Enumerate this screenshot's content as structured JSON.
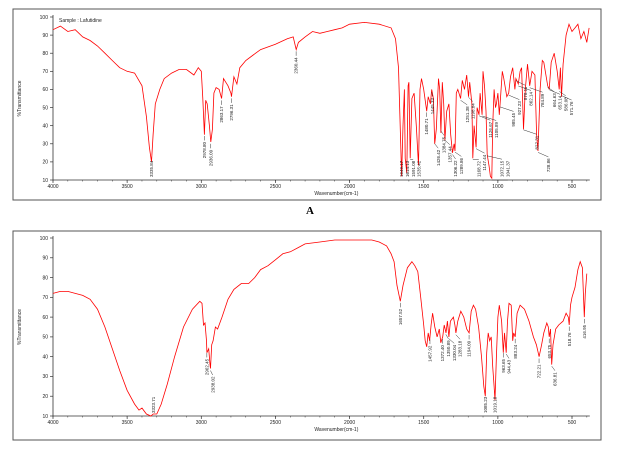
{
  "chart_data": [
    {
      "type": "line",
      "title": "",
      "annotation": "Sample : Lafutidine",
      "xlabel": "Wavenumber(cm-1)",
      "ylabel": "%Transmittance",
      "xlim": [
        4000,
        380
      ],
      "ylim": [
        10,
        100
      ],
      "x_ticks": [
        4000,
        3500,
        3000,
        2500,
        2000,
        1500,
        1000,
        500
      ],
      "y_ticks": [
        10,
        20,
        30,
        40,
        50,
        60,
        70,
        80,
        90,
        100
      ],
      "line_color": "#ff0000",
      "grid": false,
      "points": [
        [
          4000,
          93
        ],
        [
          3950,
          95
        ],
        [
          3900,
          92
        ],
        [
          3850,
          93
        ],
        [
          3800,
          89
        ],
        [
          3750,
          87
        ],
        [
          3700,
          84
        ],
        [
          3650,
          80
        ],
        [
          3600,
          76
        ],
        [
          3550,
          72
        ],
        [
          3500,
          70
        ],
        [
          3450,
          69
        ],
        [
          3400,
          62
        ],
        [
          3370,
          45
        ],
        [
          3350,
          28
        ],
        [
          3336,
          20
        ],
        [
          3325,
          35
        ],
        [
          3310,
          52
        ],
        [
          3280,
          60
        ],
        [
          3250,
          66
        ],
        [
          3200,
          69
        ],
        [
          3150,
          71
        ],
        [
          3100,
          71
        ],
        [
          3050,
          68
        ],
        [
          3020,
          72
        ],
        [
          3000,
          70
        ],
        [
          2990,
          55
        ],
        [
          2979,
          35
        ],
        [
          2970,
          54
        ],
        [
          2960,
          52
        ],
        [
          2945,
          40
        ],
        [
          2936,
          31
        ],
        [
          2925,
          38
        ],
        [
          2915,
          58
        ],
        [
          2900,
          61
        ],
        [
          2880,
          60
        ],
        [
          2863,
          55
        ],
        [
          2850,
          66
        ],
        [
          2820,
          62
        ],
        [
          2800,
          58
        ],
        [
          2796,
          56
        ],
        [
          2780,
          67
        ],
        [
          2760,
          63
        ],
        [
          2740,
          72
        ],
        [
          2700,
          76
        ],
        [
          2650,
          79
        ],
        [
          2600,
          82
        ],
        [
          2500,
          85
        ],
        [
          2420,
          88
        ],
        [
          2380,
          89
        ],
        [
          2360,
          82
        ],
        [
          2345,
          86
        ],
        [
          2300,
          89
        ],
        [
          2250,
          92
        ],
        [
          2200,
          91
        ],
        [
          2150,
          92
        ],
        [
          2100,
          93
        ],
        [
          2050,
          94
        ],
        [
          2000,
          96
        ],
        [
          1900,
          97
        ],
        [
          1800,
          96
        ],
        [
          1720,
          94
        ],
        [
          1690,
          88
        ],
        [
          1670,
          72
        ],
        [
          1655,
          30
        ],
        [
          1649,
          12
        ],
        [
          1640,
          40
        ],
        [
          1630,
          60
        ],
        [
          1625,
          22
        ],
        [
          1614,
          14
        ],
        [
          1605,
          62
        ],
        [
          1600,
          64
        ],
        [
          1591,
          22
        ],
        [
          1580,
          55
        ],
        [
          1565,
          58
        ],
        [
          1550,
          40
        ],
        [
          1535,
          18
        ],
        [
          1525,
          60
        ],
        [
          1515,
          66
        ],
        [
          1500,
          60
        ],
        [
          1480,
          48
        ],
        [
          1470,
          56
        ],
        [
          1455,
          52
        ],
        [
          1446,
          60
        ],
        [
          1435,
          55
        ],
        [
          1426,
          30
        ],
        [
          1415,
          38
        ],
        [
          1400,
          66
        ],
        [
          1392,
          60
        ],
        [
          1384,
          36
        ],
        [
          1375,
          64
        ],
        [
          1365,
          52
        ],
        [
          1357,
          32
        ],
        [
          1345,
          48
        ],
        [
          1330,
          52
        ],
        [
          1318,
          35
        ],
        [
          1306,
          25
        ],
        [
          1295,
          30
        ],
        [
          1289,
          26
        ],
        [
          1280,
          58
        ],
        [
          1270,
          60
        ],
        [
          1251,
          55
        ],
        [
          1240,
          65
        ],
        [
          1225,
          60
        ],
        [
          1210,
          68
        ],
        [
          1198,
          56
        ],
        [
          1190,
          64
        ],
        [
          1175,
          52
        ],
        [
          1169,
          22
        ],
        [
          1160,
          40
        ],
        [
          1147,
          28
        ],
        [
          1140,
          50
        ],
        [
          1127,
          46
        ],
        [
          1120,
          58
        ],
        [
          1106,
          46
        ],
        [
          1100,
          70
        ],
        [
          1090,
          62
        ],
        [
          1080,
          48
        ],
        [
          1072,
          24
        ],
        [
          1060,
          18
        ],
        [
          1050,
          12
        ],
        [
          1041,
          11
        ],
        [
          1035,
          40
        ],
        [
          1025,
          60
        ],
        [
          1016,
          50
        ],
        [
          1010,
          52
        ],
        [
          1000,
          58
        ],
        [
          990,
          46
        ],
        [
          985,
          52
        ],
        [
          970,
          70
        ],
        [
          960,
          66
        ],
        [
          940,
          56
        ],
        [
          927,
          58
        ],
        [
          915,
          67
        ],
        [
          900,
          72
        ],
        [
          885,
          60
        ],
        [
          878,
          66
        ],
        [
          862,
          63
        ],
        [
          850,
          70
        ],
        [
          840,
          72
        ],
        [
          827,
          38
        ],
        [
          815,
          60
        ],
        [
          800,
          74
        ],
        [
          785,
          62
        ],
        [
          770,
          70
        ],
        [
          750,
          68
        ],
        [
          739,
          35
        ],
        [
          729,
          26
        ],
        [
          715,
          60
        ],
        [
          700,
          76
        ],
        [
          690,
          75
        ],
        [
          664,
          62
        ],
        [
          654,
          60
        ],
        [
          640,
          75
        ],
        [
          620,
          80
        ],
        [
          600,
          70
        ],
        [
          586,
          60
        ],
        [
          578,
          72
        ],
        [
          571,
          56
        ],
        [
          560,
          74
        ],
        [
          540,
          90
        ],
        [
          520,
          96
        ],
        [
          500,
          92
        ],
        [
          480,
          94
        ],
        [
          460,
          96
        ],
        [
          440,
          88
        ],
        [
          420,
          92
        ],
        [
          400,
          86
        ],
        [
          385,
          94
        ]
      ],
      "peak_labels": [
        "3335.84",
        "2978.80",
        "2936.09",
        "2863.17",
        "2796.31",
        "2360.44",
        "1649.17",
        "1614.13",
        "1591.08",
        "1535.42",
        "1480.71",
        "1445.33",
        "1426.42",
        "1384.75",
        "1357.44",
        "1306.22",
        "1289.86",
        "1251.38",
        "1198.84",
        "1168.72",
        "1147.44",
        "1126.67",
        "1105.89",
        "1072.15",
        "1041.37",
        "985.45",
        "927.23",
        "878.11",
        "862.14",
        "827.31",
        "784.89",
        "728.86",
        "664.63",
        "653.14",
        "586.08",
        "571.76"
      ],
      "peak_positions": [
        3335.84,
        2978.8,
        2936.09,
        2863.17,
        2796.31,
        2360.44,
        1649.17,
        1614.13,
        1591.08,
        1535.42,
        1480.71,
        1445.33,
        1426.42,
        1384.75,
        1357.44,
        1306.22,
        1289.86,
        1251.38,
        1198.84,
        1168.72,
        1147.44,
        1126.67,
        1105.89,
        1072.15,
        1041.37,
        985.45,
        927.23,
        878.11,
        862.14,
        827.31,
        784.89,
        728.86,
        664.63,
        653.14,
        586.08,
        571.76
      ],
      "figure_label": "A"
    },
    {
      "type": "line",
      "title": "",
      "xlabel": "Wavenumber(cm-1)",
      "ylabel": "%Transmittance",
      "xlim": [
        4000,
        380
      ],
      "ylim": [
        10,
        100
      ],
      "x_ticks": [
        4000,
        3500,
        3000,
        2500,
        2000,
        1500,
        1000,
        500
      ],
      "y_ticks": [
        10,
        20,
        30,
        40,
        50,
        60,
        70,
        80,
        90,
        100
      ],
      "line_color": "#ff0000",
      "grid": false,
      "points": [
        [
          4000,
          72
        ],
        [
          3950,
          73
        ],
        [
          3900,
          73
        ],
        [
          3850,
          72
        ],
        [
          3800,
          71
        ],
        [
          3750,
          69
        ],
        [
          3700,
          64
        ],
        [
          3650,
          55
        ],
        [
          3600,
          44
        ],
        [
          3550,
          33
        ],
        [
          3500,
          23
        ],
        [
          3450,
          16
        ],
        [
          3420,
          13
        ],
        [
          3400,
          14
        ],
        [
          3370,
          11
        ],
        [
          3340,
          10
        ],
        [
          3324,
          11
        ],
        [
          3300,
          11
        ],
        [
          3270,
          16
        ],
        [
          3230,
          26
        ],
        [
          3180,
          40
        ],
        [
          3120,
          55
        ],
        [
          3060,
          64
        ],
        [
          3010,
          68
        ],
        [
          2995,
          67
        ],
        [
          2985,
          56
        ],
        [
          2975,
          57
        ],
        [
          2965,
          48
        ],
        [
          2962,
          42
        ],
        [
          2950,
          44
        ],
        [
          2940,
          35
        ],
        [
          2938,
          34
        ],
        [
          2930,
          46
        ],
        [
          2920,
          48
        ],
        [
          2905,
          55
        ],
        [
          2890,
          54
        ],
        [
          2860,
          60
        ],
        [
          2820,
          69
        ],
        [
          2780,
          74
        ],
        [
          2730,
          77
        ],
        [
          2680,
          77
        ],
        [
          2640,
          80
        ],
        [
          2600,
          84
        ],
        [
          2550,
          86
        ],
        [
          2500,
          89
        ],
        [
          2450,
          92
        ],
        [
          2400,
          93
        ],
        [
          2350,
          95
        ],
        [
          2300,
          97
        ],
        [
          2200,
          98
        ],
        [
          2100,
          99
        ],
        [
          2000,
          99
        ],
        [
          1900,
          99
        ],
        [
          1850,
          99
        ],
        [
          1800,
          98
        ],
        [
          1750,
          96
        ],
        [
          1720,
          92
        ],
        [
          1700,
          88
        ],
        [
          1680,
          76
        ],
        [
          1658,
          68
        ],
        [
          1640,
          76
        ],
        [
          1610,
          85
        ],
        [
          1580,
          88
        ],
        [
          1560,
          86
        ],
        [
          1540,
          83
        ],
        [
          1520,
          70
        ],
        [
          1500,
          56
        ],
        [
          1490,
          48
        ],
        [
          1480,
          45
        ],
        [
          1470,
          52
        ],
        [
          1460,
          48
        ],
        [
          1450,
          56
        ],
        [
          1440,
          62
        ],
        [
          1425,
          55
        ],
        [
          1410,
          50
        ],
        [
          1395,
          54
        ],
        [
          1385,
          47
        ],
        [
          1372,
          50
        ],
        [
          1362,
          56
        ],
        [
          1350,
          52
        ],
        [
          1340,
          58
        ],
        [
          1330,
          50
        ],
        [
          1320,
          58
        ],
        [
          1300,
          60
        ],
        [
          1290,
          56
        ],
        [
          1283,
          52
        ],
        [
          1270,
          58
        ],
        [
          1250,
          63
        ],
        [
          1230,
          60
        ],
        [
          1210,
          54
        ],
        [
          1194,
          52
        ],
        [
          1180,
          63
        ],
        [
          1165,
          66
        ],
        [
          1150,
          64
        ],
        [
          1130,
          55
        ],
        [
          1110,
          40
        ],
        [
          1095,
          25
        ],
        [
          1085,
          20
        ],
        [
          1075,
          42
        ],
        [
          1065,
          52
        ],
        [
          1055,
          48
        ],
        [
          1045,
          50
        ],
        [
          1035,
          35
        ],
        [
          1025,
          25
        ],
        [
          1019,
          18
        ],
        [
          1010,
          40
        ],
        [
          1000,
          60
        ],
        [
          990,
          66
        ],
        [
          975,
          58
        ],
        [
          963,
          42
        ],
        [
          955,
          52
        ],
        [
          944,
          42
        ],
        [
          935,
          58
        ],
        [
          925,
          67
        ],
        [
          910,
          66
        ],
        [
          900,
          48
        ],
        [
          893,
          52
        ],
        [
          883,
          50
        ],
        [
          870,
          62
        ],
        [
          850,
          66
        ],
        [
          820,
          64
        ],
        [
          790,
          58
        ],
        [
          760,
          50
        ],
        [
          740,
          46
        ],
        [
          722,
          40
        ],
        [
          705,
          46
        ],
        [
          690,
          52
        ],
        [
          670,
          57
        ],
        [
          660,
          55
        ],
        [
          654,
          50
        ],
        [
          645,
          54
        ],
        [
          637,
          36
        ],
        [
          628,
          46
        ],
        [
          610,
          54
        ],
        [
          590,
          56
        ],
        [
          560,
          58
        ],
        [
          540,
          62
        ],
        [
          525,
          60
        ],
        [
          519,
          56
        ],
        [
          510,
          66
        ],
        [
          500,
          70
        ],
        [
          480,
          75
        ],
        [
          460,
          84
        ],
        [
          445,
          88
        ],
        [
          430,
          85
        ],
        [
          417,
          60
        ],
        [
          410,
          72
        ],
        [
          400,
          82
        ]
      ],
      "peak_labels": [
        "3323.71",
        "2962.45",
        "2938.02",
        "1657.52",
        "1457.92",
        "1372.40",
        "1350.89",
        "1330.04",
        "1283.18",
        "1194.09",
        "1085.23",
        "1019.18",
        "963.65",
        "944.43",
        "883.24",
        "722.21",
        "653.75",
        "636.81",
        "518.76",
        "416.95"
      ],
      "peak_positions": [
        3323.71,
        2962.45,
        2938.02,
        1657.52,
        1457.92,
        1372.4,
        1350.89,
        1330.04,
        1283.18,
        1194.09,
        1085.23,
        1019.18,
        963.65,
        944.43,
        883.24,
        722.21,
        653.75,
        636.81,
        518.76,
        416.95
      ]
    }
  ]
}
